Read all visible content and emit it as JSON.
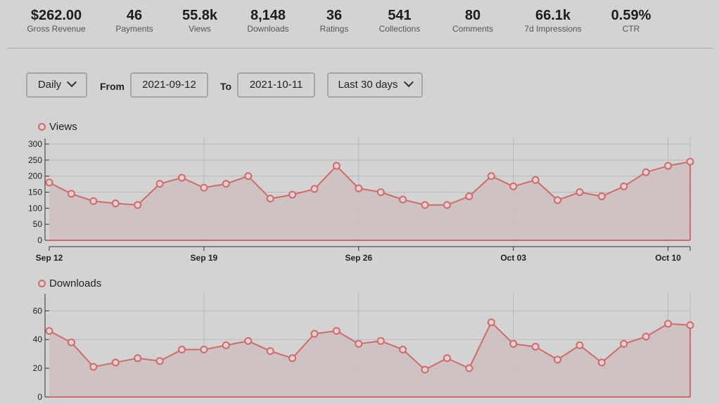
{
  "stats": [
    {
      "value": "$262.00",
      "label": "Gross Revenue"
    },
    {
      "value": "46",
      "label": "Payments"
    },
    {
      "value": "55.8k",
      "label": "Views"
    },
    {
      "value": "8,148",
      "label": "Downloads"
    },
    {
      "value": "36",
      "label": "Ratings"
    },
    {
      "value": "541",
      "label": "Collections"
    },
    {
      "value": "80",
      "label": "Comments"
    },
    {
      "value": "66.1k",
      "label": "7d Impressions"
    },
    {
      "value": "0.59%",
      "label": "CTR"
    }
  ],
  "controls": {
    "interval": "Daily",
    "from_label": "From",
    "from_value": "2021-09-12",
    "to_label": "To",
    "to_value": "2021-10-11",
    "range": "Last 30 days"
  },
  "colors": {
    "series": "#d16b6b",
    "fill": "#cdbebf",
    "grid": "#b9b9b9"
  },
  "chart_data": [
    {
      "type": "area",
      "legend": "Views",
      "x_tick_labels": [
        "Sep 12",
        "Sep 19",
        "Sep 26",
        "Oct 03",
        "Oct 10"
      ],
      "x_tick_index": [
        0,
        7,
        14,
        21,
        28
      ],
      "y_ticks": [
        0,
        50,
        100,
        150,
        200,
        250,
        300
      ],
      "ylim": [
        0,
        300
      ],
      "values": [
        180,
        145,
        122,
        115,
        110,
        176,
        195,
        164,
        176,
        200,
        130,
        142,
        160,
        232,
        162,
        150,
        127,
        110,
        110,
        137,
        200,
        168,
        188,
        125,
        150,
        137,
        168,
        212,
        232,
        245
      ]
    },
    {
      "type": "area",
      "legend": "Downloads",
      "x_tick_labels": [],
      "x_tick_index": [
        0,
        7,
        14,
        21,
        28
      ],
      "y_ticks": [
        0,
        20,
        40,
        60
      ],
      "ylim": [
        0,
        68
      ],
      "values": [
        46,
        38,
        21,
        24,
        27,
        25,
        33,
        33,
        36,
        39,
        32,
        27,
        44,
        46,
        37,
        39,
        33,
        19,
        27,
        20,
        52,
        37,
        35,
        26,
        36,
        24,
        37,
        42,
        51,
        50
      ]
    }
  ]
}
